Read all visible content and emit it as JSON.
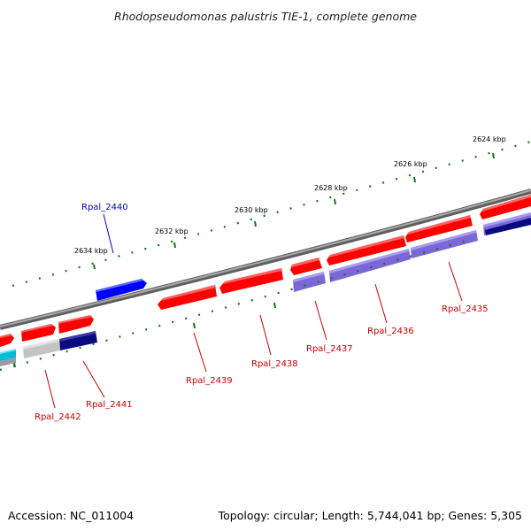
{
  "title": "Rhodopseudomonas palustris TIE-1, complete genome",
  "footer": {
    "accession": "Accession: NC_011004",
    "summary": "Topology: circular; Length: 5,744,041 bp; Genes: 5,305"
  },
  "colors": {
    "backbone": "#8a8a8a",
    "tick_dotted": "#117711",
    "forward_cds": "#ff0000",
    "reverse_cds": "#7b68d8",
    "highlight_gene": "#0000ff",
    "reverse_dark": "#0a0a80",
    "gray_gene": "#b8b8b8",
    "cyan_gene": "#00bcd4",
    "label_red": "#cc0000",
    "label_blue": "#0000cc"
  },
  "kbp_ticks": [
    {
      "label": "2624 kbp",
      "kbp": 2624
    },
    {
      "label": "2626 kbp",
      "kbp": 2626
    },
    {
      "label": "2628 kbp",
      "kbp": 2628
    },
    {
      "label": "2630 kbp",
      "kbp": 2630
    },
    {
      "label": "2632 kbp",
      "kbp": 2632
    },
    {
      "label": "2634 kbp",
      "kbp": 2634
    }
  ],
  "gene_labels": [
    {
      "name": "Rpal_2440",
      "color": "blue"
    },
    {
      "name": "Rpal_2435",
      "color": "red"
    },
    {
      "name": "Rpal_2436",
      "color": "red"
    },
    {
      "name": "Rpal_2437",
      "color": "red"
    },
    {
      "name": "Rpal_2438",
      "color": "red"
    },
    {
      "name": "Rpal_2439",
      "color": "red"
    },
    {
      "name": "Rpal_2441",
      "color": "red"
    },
    {
      "name": "Rpal_2442",
      "color": "red"
    }
  ]
}
